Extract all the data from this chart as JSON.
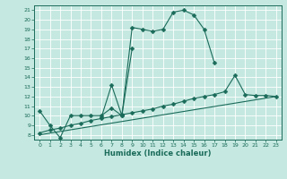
{
  "xlabel": "Humidex (Indice chaleur)",
  "bg_color": "#c5e8e0",
  "grid_color": "#ffffff",
  "line_color": "#1a6b5a",
  "xlim": [
    -0.5,
    23.5
  ],
  "ylim": [
    7.5,
    21.5
  ],
  "xticks": [
    0,
    1,
    2,
    3,
    4,
    5,
    6,
    7,
    8,
    9,
    10,
    11,
    12,
    13,
    14,
    15,
    16,
    17,
    18,
    19,
    20,
    21,
    22,
    23
  ],
  "yticks": [
    8,
    9,
    10,
    11,
    12,
    13,
    14,
    15,
    16,
    17,
    18,
    19,
    20,
    21
  ],
  "series": [
    {
      "x": [
        0,
        1,
        2,
        3,
        4,
        5,
        6,
        7,
        8,
        9,
        10,
        11,
        12,
        13,
        14,
        15,
        16,
        17,
        18,
        19,
        20,
        21,
        22,
        23
      ],
      "y": [
        10.5,
        9.0,
        7.7,
        10.0,
        10.0,
        10.0,
        10.0,
        10.8,
        10.0,
        19.2,
        19.0,
        18.8,
        19.0,
        20.8,
        21.0,
        20.5,
        19.0,
        15.5,
        null,
        null,
        null,
        null,
        null,
        null
      ],
      "marker": true,
      "markersize": 2.5
    },
    {
      "x": [
        6,
        7,
        8,
        9
      ],
      "y": [
        9.8,
        13.2,
        10.0,
        17.0
      ],
      "marker": true,
      "markersize": 2.5
    },
    {
      "x": [
        0,
        1,
        2,
        3,
        4,
        5,
        6,
        7,
        8,
        9,
        10,
        11,
        12,
        13,
        14,
        15,
        16,
        17,
        18,
        19,
        20,
        21,
        22,
        23
      ],
      "y": [
        8.2,
        8.5,
        8.7,
        9.0,
        9.2,
        9.5,
        9.7,
        9.9,
        10.1,
        10.3,
        10.5,
        10.7,
        11.0,
        11.2,
        11.5,
        11.8,
        12.0,
        12.2,
        12.5,
        14.2,
        12.2,
        12.1,
        12.1,
        12.0
      ],
      "marker": true,
      "markersize": 2.5
    },
    {
      "x": [
        0,
        23
      ],
      "y": [
        8.0,
        12.0
      ],
      "marker": false,
      "markersize": 0
    }
  ]
}
